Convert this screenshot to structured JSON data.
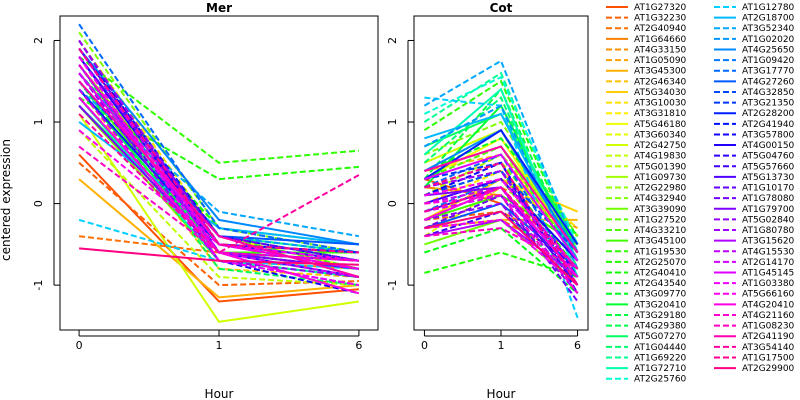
{
  "chart_data": {
    "type": "line",
    "ylabel": "centered expression",
    "xlabel": "Hour",
    "x_ticks": [
      "0",
      "1",
      "6"
    ],
    "y_ticks": [
      "-1",
      "0",
      "1",
      "2"
    ],
    "ylim": [
      -1.55,
      2.3
    ],
    "legend_placement": "right",
    "panels": [
      {
        "title": "Mer",
        "xlabel": "Hour"
      },
      {
        "title": "Cot",
        "xlabel": "Hour"
      }
    ],
    "series": [
      {
        "name": "AT1G27320",
        "color": "#FF5000",
        "dash": "solid",
        "mer": [
          0.6,
          -1.2,
          -1.05
        ],
        "cot": [
          0.3,
          0.0,
          -0.8
        ]
      },
      {
        "name": "AT1G32230",
        "color": "#FF6000",
        "dash": "dashed",
        "mer": [
          0.5,
          -1.0,
          -0.95
        ],
        "cot": [
          -0.2,
          -0.1,
          -0.6
        ]
      },
      {
        "name": "AT2G40940",
        "color": "#FF7000",
        "dash": "dashed",
        "mer": [
          -0.4,
          -0.6,
          -0.7
        ],
        "cot": [
          -0.3,
          -0.2,
          -0.7
        ]
      },
      {
        "name": "AT1G64660",
        "color": "#FF8000",
        "dash": "solid",
        "mer": [
          1.2,
          -0.7,
          -0.8
        ],
        "cot": [
          0.2,
          0.1,
          -0.5
        ]
      },
      {
        "name": "AT4G33150",
        "color": "#FF9000",
        "dash": "dashed",
        "mer": [
          1.5,
          -0.6,
          -0.7
        ],
        "cot": [
          -0.1,
          0.2,
          -0.3
        ]
      },
      {
        "name": "AT1G05090",
        "color": "#FFA000",
        "dash": "dashed",
        "mer": [
          1.7,
          -0.5,
          -0.6
        ],
        "cot": [
          0.1,
          0.3,
          -0.4
        ]
      },
      {
        "name": "AT3G45300",
        "color": "#FFB000",
        "dash": "solid",
        "mer": [
          0.3,
          -1.15,
          -1.0
        ],
        "cot": [
          -0.3,
          -0.2,
          -0.2
        ]
      },
      {
        "name": "AT2G46340",
        "color": "#FFC000",
        "dash": "dashed",
        "mer": [
          1.4,
          -0.8,
          -0.9
        ],
        "cot": [
          0.4,
          0.6,
          -0.6
        ]
      },
      {
        "name": "AT5G34030",
        "color": "#FFD000",
        "dash": "solid",
        "mer": [
          1.9,
          -0.5,
          -0.6
        ],
        "cot": [
          -0.2,
          0.3,
          -0.1
        ]
      },
      {
        "name": "AT3G10030",
        "color": "#FFE000",
        "dash": "dashed",
        "mer": [
          2.0,
          -0.4,
          -0.9
        ],
        "cot": [
          0.2,
          0.5,
          -0.3
        ]
      },
      {
        "name": "AT3G31810",
        "color": "#FFF000",
        "dash": "dashed",
        "mer": [
          1.3,
          -0.6,
          -0.7
        ],
        "cot": [
          0.0,
          0.4,
          -0.5
        ]
      },
      {
        "name": "AT5G46180",
        "color": "#F0FF00",
        "dash": "solid",
        "mer": [
          1.6,
          -0.4,
          -0.8
        ],
        "cot": [
          0.3,
          0.8,
          -0.6
        ]
      },
      {
        "name": "AT3G60340",
        "color": "#E0FF00",
        "dash": "dashed",
        "mer": [
          1.8,
          -0.5,
          -0.7
        ],
        "cot": [
          -0.4,
          0.2,
          -0.8
        ]
      },
      {
        "name": "AT2G42750",
        "color": "#D0FF00",
        "dash": "solid",
        "mer": [
          1.1,
          -1.45,
          -1.2
        ],
        "cot": [
          0.5,
          0.9,
          -0.7
        ]
      },
      {
        "name": "AT4G19830",
        "color": "#C0FF00",
        "dash": "dashed",
        "mer": [
          0.9,
          -0.9,
          -1.0
        ],
        "cot": [
          -0.3,
          0.1,
          -0.5
        ]
      },
      {
        "name": "AT5G01390",
        "color": "#B0FF00",
        "dash": "dashed",
        "mer": [
          1.5,
          -0.5,
          -0.6
        ],
        "cot": [
          0.1,
          0.6,
          -0.4
        ]
      },
      {
        "name": "AT1G09730",
        "color": "#A0FF00",
        "dash": "solid",
        "mer": [
          1.7,
          -0.4,
          -0.7
        ],
        "cot": [
          0.4,
          0.7,
          -0.5
        ]
      },
      {
        "name": "AT2G22980",
        "color": "#90FF00",
        "dash": "dashed",
        "mer": [
          1.4,
          -0.6,
          -0.8
        ],
        "cot": [
          -0.1,
          0.3,
          -0.9
        ]
      },
      {
        "name": "AT4G32940",
        "color": "#80FF00",
        "dash": "dashed",
        "mer": [
          2.1,
          -0.3,
          -0.6
        ],
        "cot": [
          0.6,
          1.0,
          -0.4
        ]
      },
      {
        "name": "AT3G39090",
        "color": "#70FF00",
        "dash": "solid",
        "mer": [
          1.2,
          -0.7,
          -0.9
        ],
        "cot": [
          -0.5,
          -0.2,
          -1.0
        ]
      },
      {
        "name": "AT1G27520",
        "color": "#60FF00",
        "dash": "dashed",
        "mer": [
          1.6,
          -0.5,
          -0.7
        ],
        "cot": [
          0.2,
          0.5,
          -0.6
        ]
      },
      {
        "name": "AT4G33210",
        "color": "#50FF00",
        "dash": "dashed",
        "mer": [
          1.9,
          -0.4,
          -0.8
        ],
        "cot": [
          0.3,
          0.7,
          -0.7
        ]
      },
      {
        "name": "AT3G45100",
        "color": "#40FF00",
        "dash": "solid",
        "mer": [
          1.5,
          -0.6,
          -0.6
        ],
        "cot": [
          -0.2,
          0.1,
          -0.5
        ]
      },
      {
        "name": "AT1G19530",
        "color": "#30FF00",
        "dash": "dashed",
        "mer": [
          1.8,
          0.5,
          0.65
        ],
        "cot": [
          0.9,
          1.5,
          -0.6
        ]
      },
      {
        "name": "AT2G25070",
        "color": "#20FF00",
        "dash": "dashed",
        "mer": [
          1.3,
          0.3,
          0.45
        ],
        "cot": [
          -0.85,
          -0.6,
          -0.9
        ]
      },
      {
        "name": "AT2G40410",
        "color": "#10FF00",
        "dash": "dashed",
        "mer": [
          1.6,
          -0.3,
          -0.5
        ],
        "cot": [
          0.1,
          0.4,
          -0.8
        ]
      },
      {
        "name": "AT2G43540",
        "color": "#00FF10",
        "dash": "dashed",
        "mer": [
          2.0,
          -0.5,
          -0.7
        ],
        "cot": [
          -0.6,
          -0.3,
          -1.1
        ]
      },
      {
        "name": "AT3G09770",
        "color": "#00FF20",
        "dash": "dashed",
        "mer": [
          1.7,
          -0.7,
          -0.9
        ],
        "cot": [
          0.4,
          0.8,
          -0.4
        ]
      },
      {
        "name": "AT3G20410",
        "color": "#00FF30",
        "dash": "solid",
        "mer": [
          1.4,
          -0.6,
          -0.8
        ],
        "cot": [
          0.2,
          1.2,
          -0.6
        ]
      },
      {
        "name": "AT3G29180",
        "color": "#00FF40",
        "dash": "dashed",
        "mer": [
          1.9,
          -0.4,
          -0.6
        ],
        "cot": [
          0.3,
          1.4,
          -0.7
        ]
      },
      {
        "name": "AT4G29380",
        "color": "#00FF50",
        "dash": "dashed",
        "mer": [
          1.5,
          -0.8,
          -1.0
        ],
        "cot": [
          -0.3,
          -0.1,
          -0.9
        ]
      },
      {
        "name": "AT5G07270",
        "color": "#00FF60",
        "dash": "solid",
        "mer": [
          1.2,
          -0.5,
          -0.7
        ],
        "cot": [
          0.7,
          1.1,
          -0.5
        ]
      },
      {
        "name": "AT1G04440",
        "color": "#00FF70",
        "dash": "dashed",
        "mer": [
          1.6,
          -0.6,
          -0.8
        ],
        "cot": [
          0.5,
          1.3,
          -0.8
        ]
      },
      {
        "name": "AT1G69220",
        "color": "#00FF90",
        "dash": "dashed",
        "mer": [
          1.8,
          -0.4,
          -0.6
        ],
        "cot": [
          1.0,
          1.6,
          -0.6
        ]
      },
      {
        "name": "AT1G72710",
        "color": "#00FFB0",
        "dash": "solid",
        "mer": [
          1.3,
          -0.7,
          -0.9
        ],
        "cot": [
          0.6,
          1.4,
          -0.9
        ]
      },
      {
        "name": "AT2G25760",
        "color": "#00FFD0",
        "dash": "dashed",
        "mer": [
          1.7,
          -0.6,
          -0.7
        ],
        "cot": [
          1.1,
          1.55,
          -0.5
        ]
      },
      {
        "name": "AT1G12780",
        "color": "#00D0FF",
        "dash": "dashed",
        "mer": [
          -0.2,
          -0.7,
          -0.8
        ],
        "cot": [
          1.3,
          1.2,
          -1.4
        ]
      },
      {
        "name": "AT2G18700",
        "color": "#00B8FF",
        "dash": "solid",
        "mer": [
          1.0,
          -0.3,
          -0.5
        ],
        "cot": [
          0.8,
          1.1,
          -0.7
        ]
      },
      {
        "name": "AT3G52340",
        "color": "#00A8FF",
        "dash": "dashed",
        "mer": [
          1.4,
          -0.1,
          -0.4
        ],
        "cot": [
          1.2,
          1.75,
          -0.6
        ]
      },
      {
        "name": "AT1G02020",
        "color": "#0098FF",
        "dash": "dashed",
        "mer": [
          1.6,
          -0.4,
          -0.6
        ],
        "cot": [
          0.7,
          1.2,
          -0.8
        ]
      },
      {
        "name": "AT4G25650",
        "color": "#0088FF",
        "dash": "solid",
        "mer": [
          1.9,
          -0.2,
          -0.5
        ],
        "cot": [
          0.4,
          0.9,
          -0.6
        ]
      },
      {
        "name": "AT1G09420",
        "color": "#0078FF",
        "dash": "dashed",
        "mer": [
          1.5,
          -0.5,
          -0.7
        ],
        "cot": [
          -0.1,
          0.3,
          -0.7
        ]
      },
      {
        "name": "AT3G17770",
        "color": "#0068FF",
        "dash": "dashed",
        "mer": [
          2.2,
          -0.3,
          -0.6
        ],
        "cot": [
          0.2,
          0.6,
          -0.9
        ]
      },
      {
        "name": "AT4G27260",
        "color": "#0058FF",
        "dash": "solid",
        "mer": [
          1.8,
          -0.4,
          -0.5
        ],
        "cot": [
          -0.3,
          0.0,
          -0.8
        ]
      },
      {
        "name": "AT4G32850",
        "color": "#0048FF",
        "dash": "dashed",
        "mer": [
          1.7,
          -0.5,
          -0.7
        ],
        "cot": [
          0.1,
          0.4,
          -0.6
        ]
      },
      {
        "name": "AT3G21350",
        "color": "#0038FF",
        "dash": "dashed",
        "mer": [
          1.3,
          -0.6,
          -0.9
        ],
        "cot": [
          0.3,
          0.5,
          -1.0
        ]
      },
      {
        "name": "AT2G28200",
        "color": "#0020FF",
        "dash": "solid",
        "mer": [
          1.4,
          -0.5,
          -0.6
        ],
        "cot": [
          0.3,
          0.9,
          -0.5
        ]
      },
      {
        "name": "AT2G41940",
        "color": "#0010FF",
        "dash": "dashed",
        "mer": [
          1.9,
          -0.4,
          -0.7
        ],
        "cot": [
          -0.2,
          0.2,
          -0.9
        ]
      },
      {
        "name": "AT3G57800",
        "color": "#1000FF",
        "dash": "dashed",
        "mer": [
          1.6,
          -0.7,
          -1.1
        ],
        "cot": [
          0.1,
          0.5,
          -1.1
        ]
      },
      {
        "name": "AT4G00150",
        "color": "#2000FF",
        "dash": "solid",
        "mer": [
          1.8,
          -0.5,
          -0.8
        ],
        "cot": [
          0.0,
          0.3,
          -0.7
        ]
      },
      {
        "name": "AT5G04760",
        "color": "#3000FF",
        "dash": "dashed",
        "mer": [
          2.0,
          -0.6,
          -0.8
        ],
        "cot": [
          -0.4,
          -0.1,
          -0.8
        ]
      },
      {
        "name": "AT5G57660",
        "color": "#4000FF",
        "dash": "dashed",
        "mer": [
          1.7,
          -0.6,
          -0.9
        ],
        "cot": [
          0.2,
          0.4,
          -0.9
        ]
      },
      {
        "name": "AT5G13730",
        "color": "#5000FF",
        "dash": "solid",
        "mer": [
          1.9,
          -0.5,
          -0.7
        ],
        "cot": [
          -0.1,
          0.2,
          -1.0
        ]
      },
      {
        "name": "AT1G10170",
        "color": "#6000FF",
        "dash": "dashed",
        "mer": [
          1.5,
          -0.5,
          -0.6
        ],
        "cot": [
          0.0,
          0.3,
          -0.8
        ]
      },
      {
        "name": "AT1G78080",
        "color": "#7000FF",
        "dash": "dashed",
        "mer": [
          1.8,
          -0.4,
          -0.7
        ],
        "cot": [
          -0.3,
          0.1,
          -1.2
        ]
      },
      {
        "name": "AT1G79700",
        "color": "#8000FF",
        "dash": "solid",
        "mer": [
          1.2,
          -0.6,
          -0.8
        ],
        "cot": [
          0.1,
          0.2,
          -0.9
        ]
      },
      {
        "name": "AT5G02840",
        "color": "#9000FF",
        "dash": "dashed",
        "mer": [
          1.6,
          -0.7,
          -0.9
        ],
        "cot": [
          -0.2,
          0.0,
          -1.1
        ]
      },
      {
        "name": "AT1G80780",
        "color": "#A000FF",
        "dash": "dashed",
        "mer": [
          2.0,
          -0.5,
          -0.8
        ],
        "cot": [
          0.2,
          0.4,
          -1.0
        ]
      },
      {
        "name": "AT3G15620",
        "color": "#B000FF",
        "dash": "solid",
        "mer": [
          1.7,
          -0.6,
          -0.7
        ],
        "cot": [
          -0.4,
          -0.2,
          -0.9
        ]
      },
      {
        "name": "AT4G15530",
        "color": "#C000FF",
        "dash": "dashed",
        "mer": [
          1.4,
          -0.7,
          -1.0
        ],
        "cot": [
          0.0,
          0.2,
          -1.1
        ]
      },
      {
        "name": "AT2G14170",
        "color": "#D000FF",
        "dash": "dashed",
        "mer": [
          1.9,
          -0.6,
          -0.9
        ],
        "cot": [
          -0.1,
          0.1,
          -0.8
        ]
      },
      {
        "name": "AT1G45145",
        "color": "#E000FF",
        "dash": "solid",
        "mer": [
          1.6,
          -0.5,
          -0.8
        ],
        "cot": [
          0.3,
          0.6,
          -0.7
        ]
      },
      {
        "name": "AT1G03380",
        "color": "#F000FF",
        "dash": "dashed",
        "mer": [
          1.8,
          -0.7,
          -1.0
        ],
        "cot": [
          -0.3,
          -0.2,
          -1.0
        ]
      },
      {
        "name": "AT5G66160",
        "color": "#FF00F0",
        "dash": "dashed",
        "mer": [
          0.9,
          -0.5,
          -0.7
        ],
        "cot": [
          0.1,
          0.3,
          -0.8
        ]
      },
      {
        "name": "AT4G20410",
        "color": "#FF00E0",
        "dash": "solid",
        "mer": [
          1.3,
          -0.6,
          -1.1
        ],
        "cot": [
          -0.2,
          0.2,
          -0.9
        ]
      },
      {
        "name": "AT4G21160",
        "color": "#FF00D0",
        "dash": "dashed",
        "mer": [
          1.7,
          -0.5,
          -0.8
        ],
        "cot": [
          0.0,
          0.1,
          -1.1
        ]
      },
      {
        "name": "AT1G08230",
        "color": "#FF00C0",
        "dash": "dashed",
        "mer": [
          0.7,
          -0.6,
          -0.7
        ],
        "cot": [
          -0.4,
          -0.3,
          -0.8
        ]
      },
      {
        "name": "AT2G41190",
        "color": "#FF00B0",
        "dash": "solid",
        "mer": [
          1.5,
          -0.4,
          -0.9
        ],
        "cot": [
          0.4,
          0.7,
          -0.6
        ]
      },
      {
        "name": "AT3G54140",
        "color": "#FF00A0",
        "dash": "dashed",
        "mer": [
          1.1,
          -0.6,
          0.35
        ],
        "cot": [
          -0.1,
          0.2,
          -0.8
        ]
      },
      {
        "name": "AT1G17500",
        "color": "#FF0090",
        "dash": "dashed",
        "mer": [
          1.9,
          -0.5,
          -0.6
        ],
        "cot": [
          0.2,
          0.5,
          -1.0
        ]
      },
      {
        "name": "AT2G29900",
        "color": "#FF0080",
        "dash": "solid",
        "mer": [
          -0.55,
          -0.7,
          -0.75
        ],
        "cot": [
          -0.3,
          -0.1,
          -1.0
        ]
      }
    ]
  }
}
